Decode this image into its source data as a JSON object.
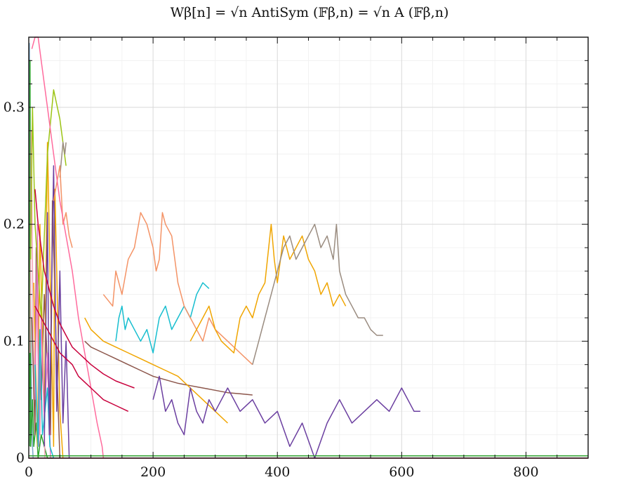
{
  "chart_data": {
    "type": "line",
    "title": "Wβ[n] = √n AntiSym (𝔽β,n) = √n A (𝔽β,n)",
    "xlabel": "",
    "ylabel": "",
    "xlim": [
      0,
      900
    ],
    "ylim": [
      0,
      0.36
    ],
    "x_ticks": [
      0,
      200,
      400,
      600,
      800
    ],
    "x_tick_labels": [
      "0",
      "200",
      "400",
      "600",
      "800"
    ],
    "y_ticks": [
      0,
      0.1,
      0.2,
      0.3
    ],
    "y_tick_labels": [
      "0",
      "0.1",
      "0.2",
      "0.3"
    ],
    "grid": true,
    "legend": "none",
    "series": [
      {
        "color": "#7aa8c8",
        "x": [
          1,
          2,
          3,
          4,
          5,
          6,
          7
        ],
        "y": [
          0.355,
          0.22,
          0.12,
          0.07,
          0.03,
          0.01,
          0
        ]
      },
      {
        "color": "#2ca02c",
        "x": [
          1,
          2,
          3,
          6,
          8,
          12,
          15,
          20,
          30,
          40
        ],
        "y": [
          0.01,
          0.34,
          0.01,
          0.05,
          0.01,
          0.03,
          0,
          0.02,
          0,
          0
        ]
      },
      {
        "color": "#f4a3b8",
        "x": [
          2,
          4,
          8,
          12,
          18,
          22,
          26
        ],
        "y": [
          0.09,
          0.28,
          0.05,
          0.15,
          0.02,
          0.11,
          0
        ]
      },
      {
        "color": "#8c564b",
        "x": [
          5,
          10,
          12,
          20,
          25,
          35,
          38,
          45,
          50
        ],
        "y": [
          0.12,
          0.02,
          0.18,
          0.05,
          0.14,
          0.02,
          0.22,
          0.08,
          0
        ]
      },
      {
        "color": "#f0a500",
        "x": [
          8,
          14,
          18,
          25,
          30,
          40,
          42,
          50,
          55
        ],
        "y": [
          0.15,
          0.01,
          0.2,
          0.03,
          0.27,
          0.01,
          0.23,
          0.04,
          0
        ]
      },
      {
        "color": "#e377c2",
        "x": [
          10,
          14,
          16,
          20,
          25,
          30,
          35
        ],
        "y": [
          0.05,
          0.2,
          0.01,
          0.12,
          0.03,
          0.09,
          0
        ]
      },
      {
        "color": "#17becf",
        "x": [
          10,
          15,
          18,
          22,
          30,
          34,
          40
        ],
        "y": [
          0.08,
          0.01,
          0.11,
          0.02,
          0.06,
          0.01,
          0
        ]
      },
      {
        "color": "#6b3fa0",
        "x": [
          25,
          30,
          33,
          40,
          45,
          50,
          55,
          60,
          65
        ],
        "y": [
          0.01,
          0.21,
          0.02,
          0.25,
          0.04,
          0.16,
          0.03,
          0.1,
          0
        ]
      },
      {
        "color": "#9cc414",
        "x": [
          3,
          6,
          10,
          20,
          30,
          40,
          50,
          55,
          60
        ],
        "y": [
          0.17,
          0.3,
          0.2,
          0.12,
          0.26,
          0.315,
          0.29,
          0.27,
          0.25
        ]
      },
      {
        "color": "#9a8c80",
        "x": [
          50,
          55,
          58,
          60
        ],
        "y": [
          0.24,
          0.27,
          0.26,
          0.27
        ]
      },
      {
        "color": "#f49366",
        "x": [
          40,
          50,
          55,
          60,
          65,
          70
        ],
        "y": [
          0.22,
          0.25,
          0.2,
          0.21,
          0.19,
          0.18
        ]
      },
      {
        "color": "#ff6b9d",
        "x": [
          5,
          10,
          15,
          20,
          30,
          40,
          50,
          60,
          70,
          80,
          90,
          100,
          110,
          118,
          120
        ],
        "y": [
          0.35,
          0.37,
          0.36,
          0.34,
          0.3,
          0.26,
          0.22,
          0.19,
          0.16,
          0.12,
          0.09,
          0.06,
          0.03,
          0.01,
          0
        ]
      },
      {
        "color": "#c8003c",
        "x": [
          10,
          15,
          20,
          25,
          30,
          35,
          40,
          50,
          60,
          70,
          80,
          90,
          100,
          120,
          140,
          160,
          170
        ],
        "y": [
          0.23,
          0.2,
          0.18,
          0.16,
          0.15,
          0.14,
          0.13,
          0.115,
          0.105,
          0.095,
          0.09,
          0.085,
          0.08,
          0.072,
          0.066,
          0.062,
          0.06
        ]
      },
      {
        "color": "#c8003c",
        "x": [
          10,
          20,
          30,
          40,
          50,
          60,
          70,
          80,
          90,
          100,
          120,
          140,
          160
        ],
        "y": [
          0.13,
          0.12,
          0.11,
          0.1,
          0.09,
          0.085,
          0.08,
          0.07,
          0.065,
          0.06,
          0.05,
          0.045,
          0.04
        ]
      },
      {
        "color": "#8c564b",
        "x": [
          90,
          100,
          120,
          140,
          160,
          180,
          200,
          220,
          240,
          260,
          280,
          300,
          320,
          340,
          360
        ],
        "y": [
          0.1,
          0.095,
          0.09,
          0.085,
          0.08,
          0.075,
          0.07,
          0.067,
          0.064,
          0.062,
          0.06,
          0.058,
          0.056,
          0.055,
          0.054
        ]
      },
      {
        "color": "#f0a500",
        "x": [
          90,
          100,
          120,
          140,
          160,
          180,
          200,
          220,
          240,
          260,
          280,
          300,
          320
        ],
        "y": [
          0.12,
          0.11,
          0.1,
          0.095,
          0.09,
          0.085,
          0.08,
          0.075,
          0.07,
          0.06,
          0.05,
          0.04,
          0.03
        ]
      },
      {
        "color": "#17becf",
        "x": [
          140,
          145,
          150,
          155,
          160,
          170,
          180,
          190,
          200,
          210,
          220,
          230,
          240,
          250,
          260,
          270,
          280,
          290
        ],
        "y": [
          0.1,
          0.12,
          0.13,
          0.11,
          0.12,
          0.11,
          0.1,
          0.11,
          0.09,
          0.12,
          0.13,
          0.11,
          0.12,
          0.13,
          0.12,
          0.14,
          0.15,
          0.145
        ]
      },
      {
        "color": "#f49366",
        "x": [
          120,
          135,
          140,
          150,
          160,
          170,
          180,
          190,
          200,
          205,
          210,
          215,
          220,
          230,
          240,
          250,
          260,
          270,
          280,
          290,
          300,
          320,
          340,
          360
        ],
        "y": [
          0.14,
          0.13,
          0.16,
          0.14,
          0.17,
          0.18,
          0.21,
          0.2,
          0.18,
          0.16,
          0.17,
          0.21,
          0.2,
          0.19,
          0.15,
          0.13,
          0.12,
          0.11,
          0.1,
          0.12,
          0.11,
          0.1,
          0.09,
          0.08
        ]
      },
      {
        "color": "#f0a500",
        "x": [
          260,
          270,
          280,
          290,
          300,
          310,
          320,
          330,
          340,
          350,
          360,
          370,
          380,
          390,
          395,
          400,
          410,
          420,
          430,
          440,
          450,
          460,
          470,
          480,
          490,
          500,
          510
        ],
        "y": [
          0.1,
          0.11,
          0.12,
          0.13,
          0.11,
          0.1,
          0.095,
          0.09,
          0.12,
          0.13,
          0.12,
          0.14,
          0.15,
          0.2,
          0.17,
          0.15,
          0.19,
          0.17,
          0.18,
          0.19,
          0.17,
          0.16,
          0.14,
          0.15,
          0.13,
          0.14,
          0.13
        ]
      },
      {
        "color": "#9a8c80",
        "x": [
          360,
          370,
          380,
          390,
          400,
          410,
          420,
          430,
          440,
          450,
          460,
          470,
          480,
          490,
          495,
          500,
          510,
          520,
          530,
          540,
          550,
          560,
          570
        ],
        "y": [
          0.08,
          0.1,
          0.12,
          0.14,
          0.16,
          0.18,
          0.19,
          0.17,
          0.18,
          0.19,
          0.2,
          0.18,
          0.19,
          0.17,
          0.2,
          0.16,
          0.14,
          0.13,
          0.12,
          0.12,
          0.11,
          0.105,
          0.105
        ]
      },
      {
        "color": "#6b3fa0",
        "x": [
          200,
          210,
          220,
          230,
          240,
          250,
          260,
          270,
          280,
          290,
          300,
          320,
          340,
          360,
          380,
          400,
          420,
          440,
          460,
          480,
          500,
          520,
          540,
          560,
          580,
          600,
          620,
          630
        ],
        "y": [
          0.05,
          0.07,
          0.04,
          0.05,
          0.03,
          0.02,
          0.06,
          0.04,
          0.03,
          0.05,
          0.04,
          0.06,
          0.04,
          0.05,
          0.03,
          0.04,
          0.01,
          0.03,
          0.0,
          0.03,
          0.05,
          0.03,
          0.04,
          0.05,
          0.04,
          0.06,
          0.04,
          0.04
        ]
      },
      {
        "color": "#c8003c",
        "x": [
          0,
          100,
          200,
          300,
          400,
          500,
          600,
          700,
          800,
          900
        ],
        "y": [
          0,
          0,
          0,
          0,
          0,
          0,
          0,
          0,
          0,
          0
        ]
      },
      {
        "color": "#2ca02c",
        "x": [
          0,
          900
        ],
        "y": [
          0.002,
          0.002
        ]
      }
    ]
  }
}
